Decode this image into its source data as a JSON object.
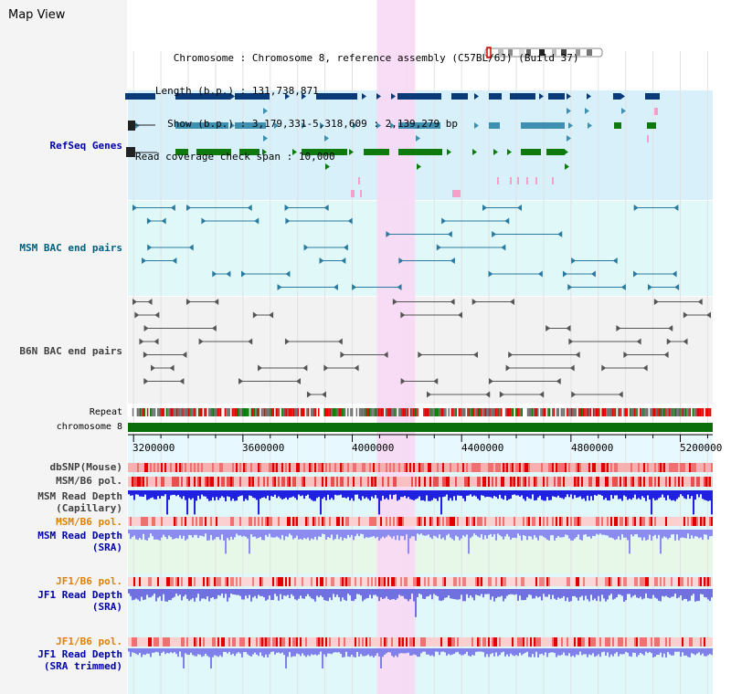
{
  "header": {
    "title": "Map View",
    "info_lines": [
      {
        "key": "Chromosome",
        "value": "Chromosome 8, reference assembly (C57BL/6J) (Build 37)"
      },
      {
        "key": "Length (b.p.)",
        "value": "131,738,871"
      },
      {
        "key": "Show (b.p.)",
        "value": "3,179,331-5,318,609 : 2,139,279 bp"
      },
      {
        "key": "Read coverage check span",
        "value": "10,000"
      }
    ]
  },
  "tracks": {
    "refseq": {
      "label": "RefSeq Genes",
      "color": "#0000aa"
    },
    "msm_bac": {
      "label": "MSM BAC end pairs",
      "color": "#006080"
    },
    "b6n_bac": {
      "label": "B6N BAC end pairs",
      "color": "#404040"
    },
    "repeat": {
      "label": "Repeat"
    },
    "chromosome": {
      "label": "chromosome 8",
      "color": "#007000"
    },
    "dbsnp": {
      "label": "dbSNP(Mouse)"
    },
    "msm_b6_pol": {
      "label": "MSM/B6 pol."
    },
    "msm_depth_cap": {
      "label": "MSM Read Depth\n(Capillary)"
    },
    "msm_b6_pol2": {
      "label": "MSM/B6 pol.",
      "color": "#e08000"
    },
    "msm_depth_sra": {
      "label": "MSM Read Depth\n(SRA)",
      "color": "#0000aa"
    },
    "jf1_b6_pol": {
      "label": "JF1/B6 pol.",
      "color": "#e08000"
    },
    "jf1_depth_sra": {
      "label": "JF1 Read Depth\n(SRA)",
      "color": "#0000aa"
    },
    "jf1_b6_pol2": {
      "label": "JF1/B6 pol.",
      "color": "#e08000"
    },
    "jf1_depth_trim": {
      "label": "JF1 Read Depth\n(SRA trimmed)",
      "color": "#0000aa"
    }
  },
  "axis": {
    "ticks": [
      "3200000",
      "3600000",
      "4000000",
      "4400000",
      "4800000",
      "5200000"
    ],
    "range": [
      3179331,
      5318609
    ]
  },
  "highlight": {
    "start": 4090000,
    "end": 4230000,
    "color": "#f8d8f4"
  }
}
